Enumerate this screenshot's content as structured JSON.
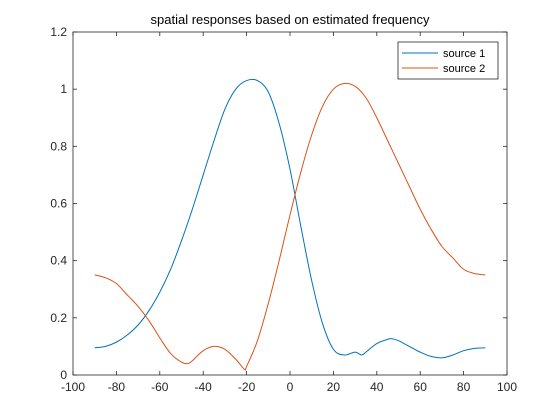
{
  "chart_data": {
    "type": "line",
    "title": "spatial responses based on estimated frequency",
    "xlabel": "",
    "ylabel": "",
    "xlim": [
      -100,
      100
    ],
    "ylim": [
      0,
      1.2
    ],
    "xticks": [
      "-100",
      "-80",
      "-60",
      "-40",
      "-20",
      "0",
      "20",
      "40",
      "60",
      "80",
      "100"
    ],
    "yticks": [
      "0",
      "0.2",
      "0.4",
      "0.6",
      "0.8",
      "1",
      "1.2"
    ],
    "grid": false,
    "legend_position": "top-right",
    "series": [
      {
        "name": "source 1",
        "color": "#0072BD",
        "x": [
          -90,
          -85,
          -80,
          -75,
          -70,
          -65,
          -60,
          -55,
          -50,
          -45,
          -40,
          -35,
          -30,
          -25,
          -20,
          -15,
          -10,
          -5,
          0,
          5,
          10,
          15,
          20,
          25,
          30,
          33,
          35,
          40,
          45,
          47,
          50,
          55,
          60,
          65,
          70,
          75,
          80,
          85,
          90
        ],
        "y": [
          0.095,
          0.1,
          0.115,
          0.14,
          0.175,
          0.225,
          0.29,
          0.37,
          0.47,
          0.58,
          0.7,
          0.82,
          0.93,
          1.0,
          1.03,
          1.03,
          0.99,
          0.88,
          0.72,
          0.52,
          0.33,
          0.18,
          0.09,
          0.07,
          0.08,
          0.07,
          0.08,
          0.11,
          0.125,
          0.127,
          0.12,
          0.1,
          0.08,
          0.065,
          0.06,
          0.07,
          0.085,
          0.093,
          0.095
        ]
      },
      {
        "name": "source 2",
        "color": "#D95319",
        "x": [
          -90,
          -85,
          -80,
          -75,
          -70,
          -65,
          -60,
          -55,
          -50,
          -47,
          -45,
          -40,
          -35,
          -30,
          -25,
          -21,
          -20,
          -15,
          -10,
          -5,
          0,
          5,
          10,
          15,
          20,
          25,
          30,
          35,
          40,
          45,
          50,
          55,
          60,
          65,
          70,
          75,
          80,
          85,
          90
        ],
        "y": [
          0.35,
          0.34,
          0.32,
          0.28,
          0.24,
          0.19,
          0.13,
          0.075,
          0.045,
          0.04,
          0.05,
          0.085,
          0.1,
          0.09,
          0.055,
          0.02,
          0.03,
          0.12,
          0.25,
          0.4,
          0.56,
          0.71,
          0.84,
          0.94,
          1.0,
          1.02,
          1.01,
          0.97,
          0.9,
          0.82,
          0.74,
          0.66,
          0.58,
          0.51,
          0.45,
          0.41,
          0.37,
          0.355,
          0.35
        ]
      }
    ]
  }
}
